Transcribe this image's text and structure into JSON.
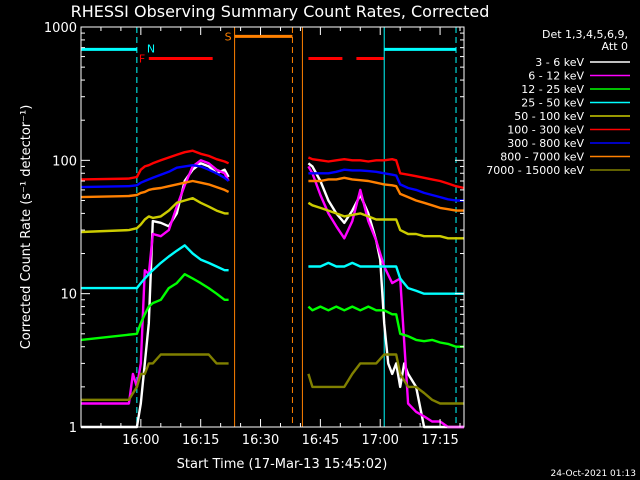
{
  "chart_data": {
    "type": "line",
    "title": "RHESSI Observing Summary Count Rates, Corrected",
    "xlabel": "Start Time (17-Mar-13 15:45:02)",
    "ylabel": "Corrected Count Rate (s⁻¹ detector⁻¹)",
    "yscale": "log",
    "xlim_min": [
      0,
      96
    ],
    "ylim": [
      1,
      1000
    ],
    "x_ticks": [
      {
        "min": 15,
        "label": "16:00"
      },
      {
        "min": 30,
        "label": "16:15"
      },
      {
        "min": 45,
        "label": "16:30"
      },
      {
        "min": 60,
        "label": "16:45"
      },
      {
        "min": 75,
        "label": "17:00"
      },
      {
        "min": 90,
        "label": "17:15"
      }
    ],
    "y_ticks": [
      {
        "value": 1,
        "label": "1"
      },
      {
        "value": 10,
        "label": "10"
      },
      {
        "value": 100,
        "label": "100"
      },
      {
        "value": 1000,
        "label": "1000"
      }
    ],
    "legend_header": [
      "Det 1,3,4,5,6,9,",
      "Att 0"
    ],
    "series": [
      {
        "name": "3 - 6 keV",
        "color": "#ffffff",
        "x": [
          0,
          14,
          15,
          16,
          17,
          18,
          20,
          22,
          24,
          26,
          28,
          30,
          32,
          34,
          36,
          37,
          38,
          56,
          57,
          58,
          60,
          62,
          64,
          66,
          68,
          70,
          72,
          74,
          75,
          76,
          77,
          78,
          79,
          80,
          81,
          82,
          84,
          86,
          88,
          90,
          92,
          94,
          96
        ],
        "y": [
          1,
          1,
          1.5,
          3,
          6,
          35,
          34,
          32,
          40,
          70,
          85,
          95,
          90,
          80,
          85,
          75,
          null,
          null,
          95,
          90,
          70,
          50,
          40,
          34,
          42,
          55,
          40,
          25,
          18,
          6,
          3,
          2.5,
          3,
          2,
          3,
          2.5,
          2,
          1,
          1,
          1,
          1,
          1,
          1
        ]
      },
      {
        "name": "6 - 12 keV",
        "color": "#ff00ff",
        "x": [
          0,
          12,
          13,
          14,
          15,
          16,
          17,
          18,
          20,
          22,
          24,
          26,
          28,
          30,
          32,
          34,
          36,
          37,
          38,
          56,
          57,
          58,
          60,
          62,
          64,
          66,
          68,
          70,
          72,
          74,
          76,
          78,
          80,
          82,
          84,
          86,
          88,
          90,
          92,
          94,
          96
        ],
        "y": [
          1.5,
          1.5,
          2.5,
          2,
          3,
          15,
          14,
          28,
          27,
          30,
          45,
          65,
          90,
          100,
          95,
          85,
          80,
          70,
          null,
          null,
          90,
          80,
          55,
          40,
          32,
          26,
          35,
          60,
          35,
          25,
          16,
          12,
          13,
          1.5,
          1.3,
          1.2,
          1.1,
          1.1,
          1,
          1,
          1
        ]
      },
      {
        "name": "12 - 25 keV",
        "color": "#00ff00",
        "x": [
          0,
          14,
          15,
          16,
          17,
          18,
          20,
          22,
          24,
          26,
          28,
          30,
          32,
          34,
          36,
          37,
          38,
          56,
          57,
          58,
          60,
          62,
          64,
          66,
          68,
          70,
          72,
          74,
          76,
          78,
          79,
          80,
          82,
          84,
          86,
          88,
          90,
          92,
          94,
          96
        ],
        "y": [
          4.5,
          5,
          6,
          7,
          8,
          8.5,
          9,
          11,
          12,
          14,
          13,
          12,
          11,
          10,
          9,
          9,
          null,
          null,
          8,
          7.5,
          8,
          7.5,
          8,
          7.5,
          8,
          7.5,
          8,
          7.5,
          7.5,
          7,
          7,
          5,
          4.8,
          4.5,
          4.4,
          4.5,
          4.3,
          4.2,
          4,
          4
        ]
      },
      {
        "name": "25 - 50 keV",
        "color": "#00ffff",
        "x": [
          0,
          14,
          15,
          16,
          17,
          18,
          20,
          22,
          24,
          26,
          28,
          30,
          32,
          34,
          36,
          37,
          38,
          56,
          57,
          58,
          60,
          62,
          64,
          66,
          68,
          70,
          72,
          74,
          76,
          78,
          79,
          80,
          82,
          84,
          86,
          88,
          90,
          92,
          94,
          96
        ],
        "y": [
          11,
          11,
          12,
          13,
          14,
          15,
          17,
          19,
          21,
          23,
          20,
          18,
          17,
          16,
          15,
          15,
          null,
          null,
          16,
          16,
          16,
          17,
          16,
          16,
          17,
          16,
          16,
          16,
          16,
          16,
          16,
          13,
          11,
          10.5,
          10,
          10,
          10,
          10,
          10,
          10
        ]
      },
      {
        "name": "50 - 100 keV",
        "color": "#cccc00",
        "x": [
          0,
          12,
          14,
          15,
          16,
          17,
          18,
          20,
          22,
          24,
          26,
          28,
          30,
          32,
          34,
          36,
          37,
          38,
          56,
          57,
          58,
          60,
          62,
          64,
          66,
          68,
          70,
          72,
          74,
          76,
          78,
          79,
          80,
          82,
          84,
          86,
          88,
          90,
          92,
          94,
          96
        ],
        "y": [
          29,
          30,
          31,
          33,
          36,
          38,
          37,
          38,
          42,
          48,
          50,
          52,
          48,
          45,
          42,
          40,
          40,
          null,
          null,
          48,
          46,
          44,
          42,
          40,
          38,
          39,
          40,
          38,
          36,
          36,
          36,
          36,
          30,
          28,
          28,
          27,
          27,
          27,
          26,
          26,
          26
        ]
      },
      {
        "name": "100 - 300 keV",
        "color": "#ff0000",
        "x": [
          0,
          12,
          14,
          15,
          16,
          17,
          18,
          20,
          22,
          24,
          26,
          28,
          30,
          32,
          34,
          36,
          37,
          38,
          56,
          57,
          58,
          60,
          62,
          64,
          66,
          68,
          70,
          72,
          74,
          76,
          78,
          79,
          80,
          82,
          84,
          86,
          88,
          90,
          92,
          94,
          96
        ],
        "y": [
          72,
          73,
          75,
          85,
          90,
          92,
          95,
          100,
          105,
          110,
          115,
          118,
          112,
          108,
          102,
          98,
          95,
          null,
          null,
          105,
          102,
          100,
          98,
          100,
          102,
          100,
          100,
          98,
          100,
          100,
          102,
          100,
          80,
          78,
          76,
          74,
          72,
          70,
          67,
          64,
          62
        ]
      },
      {
        "name": "300 - 800 keV",
        "color": "#0000ff",
        "x": [
          0,
          12,
          14,
          15,
          16,
          17,
          18,
          20,
          22,
          24,
          26,
          28,
          30,
          32,
          34,
          36,
          37,
          38,
          56,
          57,
          58,
          60,
          62,
          64,
          66,
          68,
          70,
          72,
          74,
          76,
          78,
          79,
          80,
          82,
          84,
          86,
          88,
          90,
          92,
          94,
          96
        ],
        "y": [
          63,
          64,
          65,
          68,
          70,
          72,
          74,
          78,
          82,
          88,
          90,
          92,
          90,
          85,
          80,
          74,
          70,
          null,
          null,
          80,
          80,
          80,
          80,
          82,
          85,
          84,
          84,
          83,
          82,
          80,
          78,
          77,
          66,
          62,
          60,
          57,
          55,
          53,
          51,
          50,
          50
        ]
      },
      {
        "name": "800 - 7000 keV",
        "color": "#ff8000",
        "x": [
          0,
          12,
          14,
          15,
          16,
          17,
          18,
          20,
          22,
          24,
          26,
          28,
          30,
          32,
          34,
          36,
          37,
          38,
          56,
          57,
          58,
          60,
          62,
          64,
          66,
          68,
          70,
          72,
          74,
          76,
          78,
          79,
          80,
          82,
          84,
          86,
          88,
          90,
          92,
          94,
          96
        ],
        "y": [
          53,
          54,
          55,
          57,
          58,
          60,
          61,
          62,
          64,
          66,
          68,
          70,
          68,
          66,
          63,
          60,
          58,
          null,
          null,
          70,
          70,
          70,
          72,
          72,
          74,
          72,
          71,
          70,
          68,
          66,
          65,
          64,
          56,
          53,
          50,
          48,
          46,
          44,
          43,
          42,
          42
        ]
      },
      {
        "name": "7000 - 15000 keV",
        "color": "#808000",
        "x": [
          0,
          12,
          14,
          15,
          16,
          17,
          18,
          20,
          22,
          24,
          26,
          28,
          30,
          32,
          34,
          36,
          37,
          38,
          56,
          57,
          58,
          60,
          62,
          64,
          66,
          68,
          70,
          72,
          74,
          76,
          78,
          79,
          80,
          82,
          84,
          86,
          88,
          90,
          92,
          94,
          96
        ],
        "y": [
          1.6,
          1.6,
          2,
          2.5,
          2.5,
          3,
          3,
          3.5,
          3.5,
          3.5,
          3.5,
          3.5,
          3.5,
          3.5,
          3,
          3,
          3,
          null,
          null,
          2.5,
          2,
          2,
          2,
          2,
          2,
          2.5,
          3,
          3,
          3,
          3.5,
          3.5,
          3.5,
          2.5,
          2,
          2,
          1.8,
          1.6,
          1.5,
          1.5,
          1.5,
          1.5
        ]
      }
    ],
    "events": [
      {
        "kind": "segment",
        "label": "",
        "color": "#00ffff",
        "x0": 0,
        "x1": 14,
        "y": 680,
        "dashed": false
      },
      {
        "kind": "segment",
        "label": "",
        "color": "#00ffff",
        "x0": 76,
        "x1": 94,
        "y": 680,
        "dashed": false
      },
      {
        "kind": "segment",
        "label": "S",
        "color": "#ff8000",
        "x0": 38.5,
        "x1": 53,
        "y": 850,
        "dashed": false
      },
      {
        "kind": "segment",
        "label": "F",
        "color": "#ff0000",
        "x0": 17,
        "x1": 33,
        "y": 580,
        "dashed": false
      },
      {
        "kind": "segment",
        "label": "",
        "color": "#ff0000",
        "x0": 57,
        "x1": 76,
        "y": 580,
        "dashed": true
      },
      {
        "kind": "marker",
        "label": "N",
        "color": "#00ffff",
        "x": 16.5,
        "y": 690
      }
    ],
    "vlines": [
      {
        "x": 0,
        "color": "#00ffff",
        "style": "solid"
      },
      {
        "x": 14,
        "color": "#00ffff",
        "style": "dashed"
      },
      {
        "x": 38.5,
        "color": "#ff8000",
        "style": "solid"
      },
      {
        "x": 53,
        "color": "#ff8000",
        "style": "dashed"
      },
      {
        "x": 55.5,
        "color": "#ff8000",
        "style": "solid"
      },
      {
        "x": 76,
        "color": "#00ffff",
        "style": "solid"
      },
      {
        "x": 94,
        "color": "#00ffff",
        "style": "dashed"
      }
    ]
  },
  "timestamp": "24-Oct-2021 01:13"
}
